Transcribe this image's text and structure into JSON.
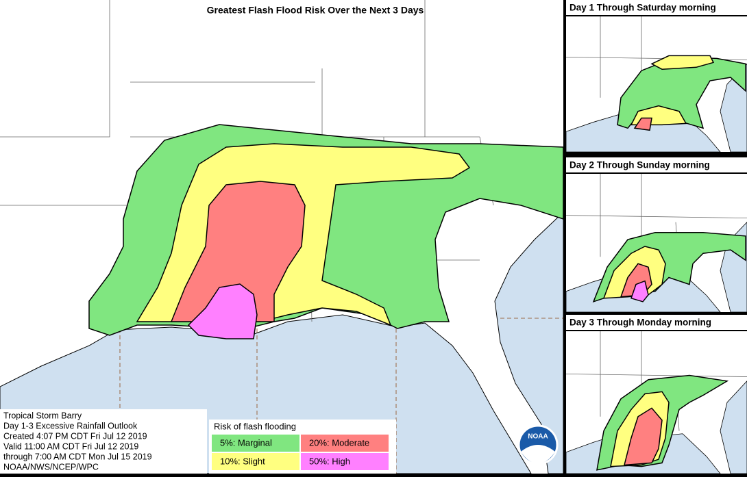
{
  "title": "Greatest Flash Flood Risk Over the Next 3 Days",
  "panels": [
    {
      "title": "Day 1 Through Saturday morning"
    },
    {
      "title": "Day 2 Through Sunday morning"
    },
    {
      "title": "Day 3 Through Monday morning"
    }
  ],
  "info": {
    "lines": [
      "Tropical Storm Barry",
      "Day 1-3 Excessive Rainfall Outlook",
      "Created 4:07 PM CDT Fri Jul 12 2019",
      "Valid 11:00 AM CDT Fri Jul 12 2019",
      "through 7:00 AM CDT Mon Jul 15 2019",
      "NOAA/NWS/NCEP/WPC"
    ]
  },
  "legend": {
    "title": "Risk of flash flooding",
    "items": [
      {
        "label": "5%: Marginal",
        "color": "#80e680"
      },
      {
        "label": "10%: Slight",
        "color": "#ffff80"
      },
      {
        "label": "20%: Moderate",
        "color": "#ff8080"
      },
      {
        "label": "50%: High",
        "color": "#ff80ff"
      }
    ]
  },
  "logo": "NOAA"
}
